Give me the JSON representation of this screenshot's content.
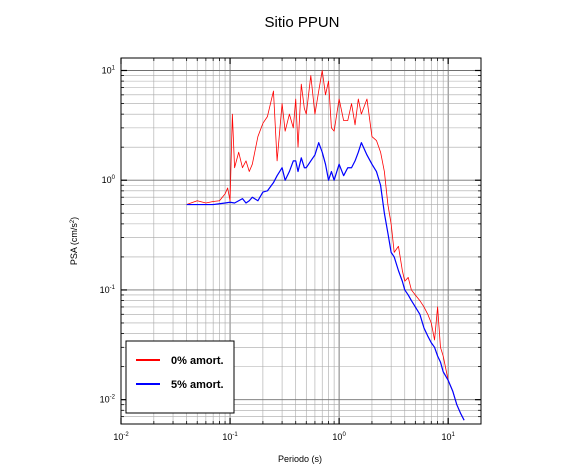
{
  "chart_data": {
    "type": "line",
    "title": "Sitio PPUN",
    "xlabel": "Periodo (s)",
    "ylabel_base": "PSA (cm/s",
    "ylabel_sup": "2",
    "ylabel_end": ")",
    "x_scale": "log",
    "y_scale": "log",
    "xlim": [
      0.01,
      20
    ],
    "ylim": [
      0.006,
      13
    ],
    "x_ticks": [
      {
        "value": 0.01,
        "base": "10",
        "exp": "-2"
      },
      {
        "value": 0.1,
        "base": "10",
        "exp": "-1"
      },
      {
        "value": 1,
        "base": "10",
        "exp": "0"
      },
      {
        "value": 10,
        "base": "10",
        "exp": "1"
      }
    ],
    "y_ticks": [
      {
        "value": 0.01,
        "base": "10",
        "exp": "-2"
      },
      {
        "value": 0.1,
        "base": "10",
        "exp": "-1"
      },
      {
        "value": 1,
        "base": "10",
        "exp": "0"
      },
      {
        "value": 10,
        "base": "10",
        "exp": "1"
      }
    ],
    "grid": true,
    "legend_position": "bottom-left",
    "series": [
      {
        "name": "0% amort.",
        "color": "#ff0000",
        "x": [
          0.04,
          0.05,
          0.06,
          0.07,
          0.08,
          0.09,
          0.095,
          0.1,
          0.105,
          0.11,
          0.12,
          0.13,
          0.14,
          0.15,
          0.16,
          0.18,
          0.2,
          0.22,
          0.25,
          0.27,
          0.3,
          0.32,
          0.35,
          0.38,
          0.4,
          0.42,
          0.45,
          0.48,
          0.5,
          0.55,
          0.6,
          0.65,
          0.7,
          0.75,
          0.8,
          0.85,
          0.9,
          1.0,
          1.1,
          1.2,
          1.3,
          1.4,
          1.5,
          1.6,
          1.8,
          2.0,
          2.2,
          2.4,
          2.6,
          2.8,
          3.0,
          3.2,
          3.5,
          3.8,
          4.0,
          4.3,
          4.6,
          5.0,
          5.5,
          6.0,
          6.5,
          7.0,
          7.5,
          8.0,
          8.5,
          9.0,
          10.0,
          11.0,
          12.0,
          13.0,
          14.0
        ],
        "y": [
          0.6,
          0.65,
          0.62,
          0.64,
          0.65,
          0.75,
          0.85,
          0.65,
          4.0,
          1.3,
          1.8,
          1.3,
          1.5,
          1.2,
          1.4,
          2.5,
          3.3,
          3.8,
          6.5,
          1.5,
          5.0,
          2.8,
          4.0,
          3.0,
          5.5,
          2.0,
          7.5,
          4.5,
          4.0,
          9.0,
          4.0,
          6.5,
          10.0,
          6.0,
          8.0,
          3.0,
          2.8,
          5.5,
          3.5,
          3.5,
          5.0,
          3.2,
          5.5,
          4.0,
          5.5,
          2.5,
          2.3,
          1.8,
          1.2,
          0.6,
          0.4,
          0.22,
          0.25,
          0.15,
          0.12,
          0.13,
          0.1,
          0.09,
          0.08,
          0.07,
          0.06,
          0.05,
          0.035,
          0.07,
          0.03,
          0.025,
          0.015,
          0.012,
          0.009,
          0.0075,
          0.0065
        ]
      },
      {
        "name": "5% amort.",
        "color": "#0000ff",
        "x": [
          0.04,
          0.05,
          0.06,
          0.07,
          0.08,
          0.09,
          0.1,
          0.11,
          0.12,
          0.13,
          0.14,
          0.15,
          0.16,
          0.18,
          0.2,
          0.22,
          0.25,
          0.27,
          0.3,
          0.32,
          0.35,
          0.38,
          0.4,
          0.42,
          0.45,
          0.48,
          0.5,
          0.55,
          0.6,
          0.65,
          0.7,
          0.75,
          0.8,
          0.85,
          0.9,
          1.0,
          1.1,
          1.2,
          1.3,
          1.4,
          1.5,
          1.6,
          1.8,
          2.0,
          2.2,
          2.4,
          2.6,
          2.8,
          3.0,
          3.2,
          3.5,
          3.8,
          4.0,
          4.3,
          4.6,
          5.0,
          5.5,
          6.0,
          6.5,
          7.0,
          7.5,
          8.0,
          8.5,
          9.0,
          10.0,
          11.0,
          12.0,
          13.0,
          14.0
        ],
        "y": [
          0.6,
          0.6,
          0.6,
          0.6,
          0.61,
          0.62,
          0.63,
          0.62,
          0.65,
          0.68,
          0.62,
          0.65,
          0.7,
          0.65,
          0.78,
          0.8,
          0.95,
          1.1,
          1.3,
          1.0,
          1.2,
          1.5,
          1.5,
          1.2,
          1.6,
          1.3,
          1.3,
          1.5,
          1.7,
          2.2,
          1.8,
          1.4,
          1.0,
          1.2,
          1.0,
          1.4,
          1.1,
          1.3,
          1.3,
          1.5,
          1.8,
          2.2,
          1.7,
          1.4,
          1.2,
          0.9,
          0.5,
          0.33,
          0.22,
          0.2,
          0.15,
          0.12,
          0.1,
          0.09,
          0.08,
          0.07,
          0.06,
          0.045,
          0.038,
          0.033,
          0.03,
          0.025,
          0.022,
          0.018,
          0.015,
          0.012,
          0.009,
          0.0075,
          0.0065
        ]
      }
    ]
  }
}
